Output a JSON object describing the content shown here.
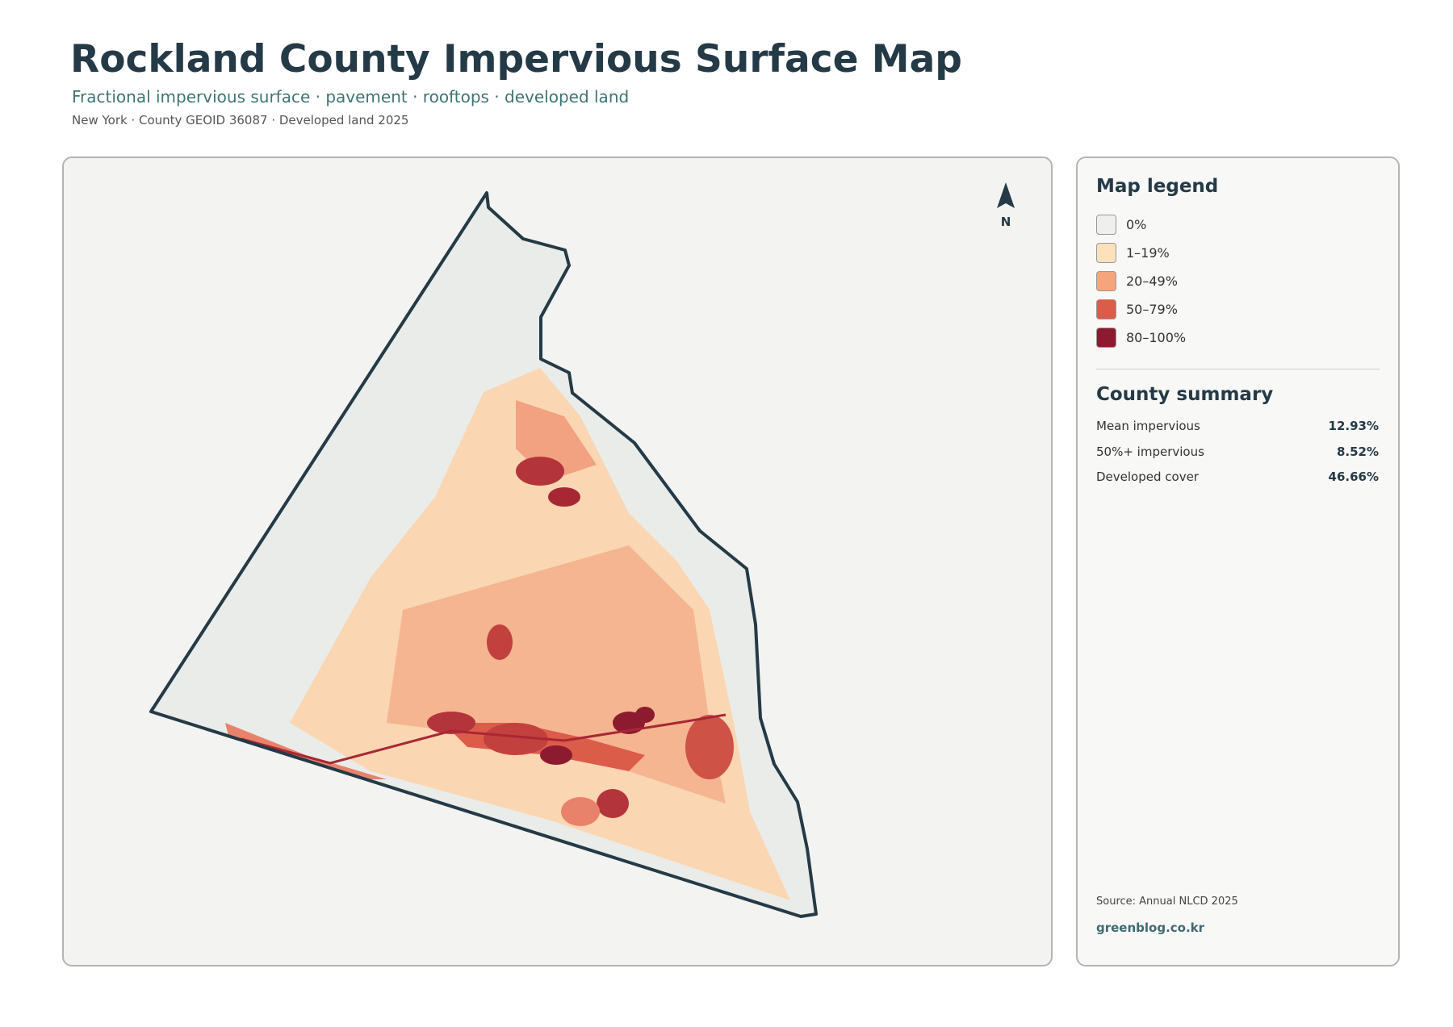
{
  "header": {
    "title": "Rockland County Impervious Surface Map",
    "subtitle": "Fractional impervious surface · pavement · rooftops · developed land",
    "meta": "New York · County GEOID 36087 · Developed land 2025"
  },
  "map": {
    "north_label": "N"
  },
  "legend": {
    "title": "Map legend",
    "items": [
      {
        "label": "0%",
        "color": "#efefec"
      },
      {
        "label": "1–19%",
        "color": "#fde0bc"
      },
      {
        "label": "20–49%",
        "color": "#f4a57c"
      },
      {
        "label": "50–79%",
        "color": "#dc5c4a"
      },
      {
        "label": "80–100%",
        "color": "#8c1b30"
      }
    ]
  },
  "summary": {
    "title": "County summary",
    "rows": [
      {
        "label": "Mean impervious",
        "value": "12.93%"
      },
      {
        "label": "50%+ impervious",
        "value": "8.52%"
      },
      {
        "label": "Developed cover",
        "value": "46.66%"
      }
    ]
  },
  "source": "Source: Annual NLCD 2025",
  "site": "greenblog.co.kr"
}
